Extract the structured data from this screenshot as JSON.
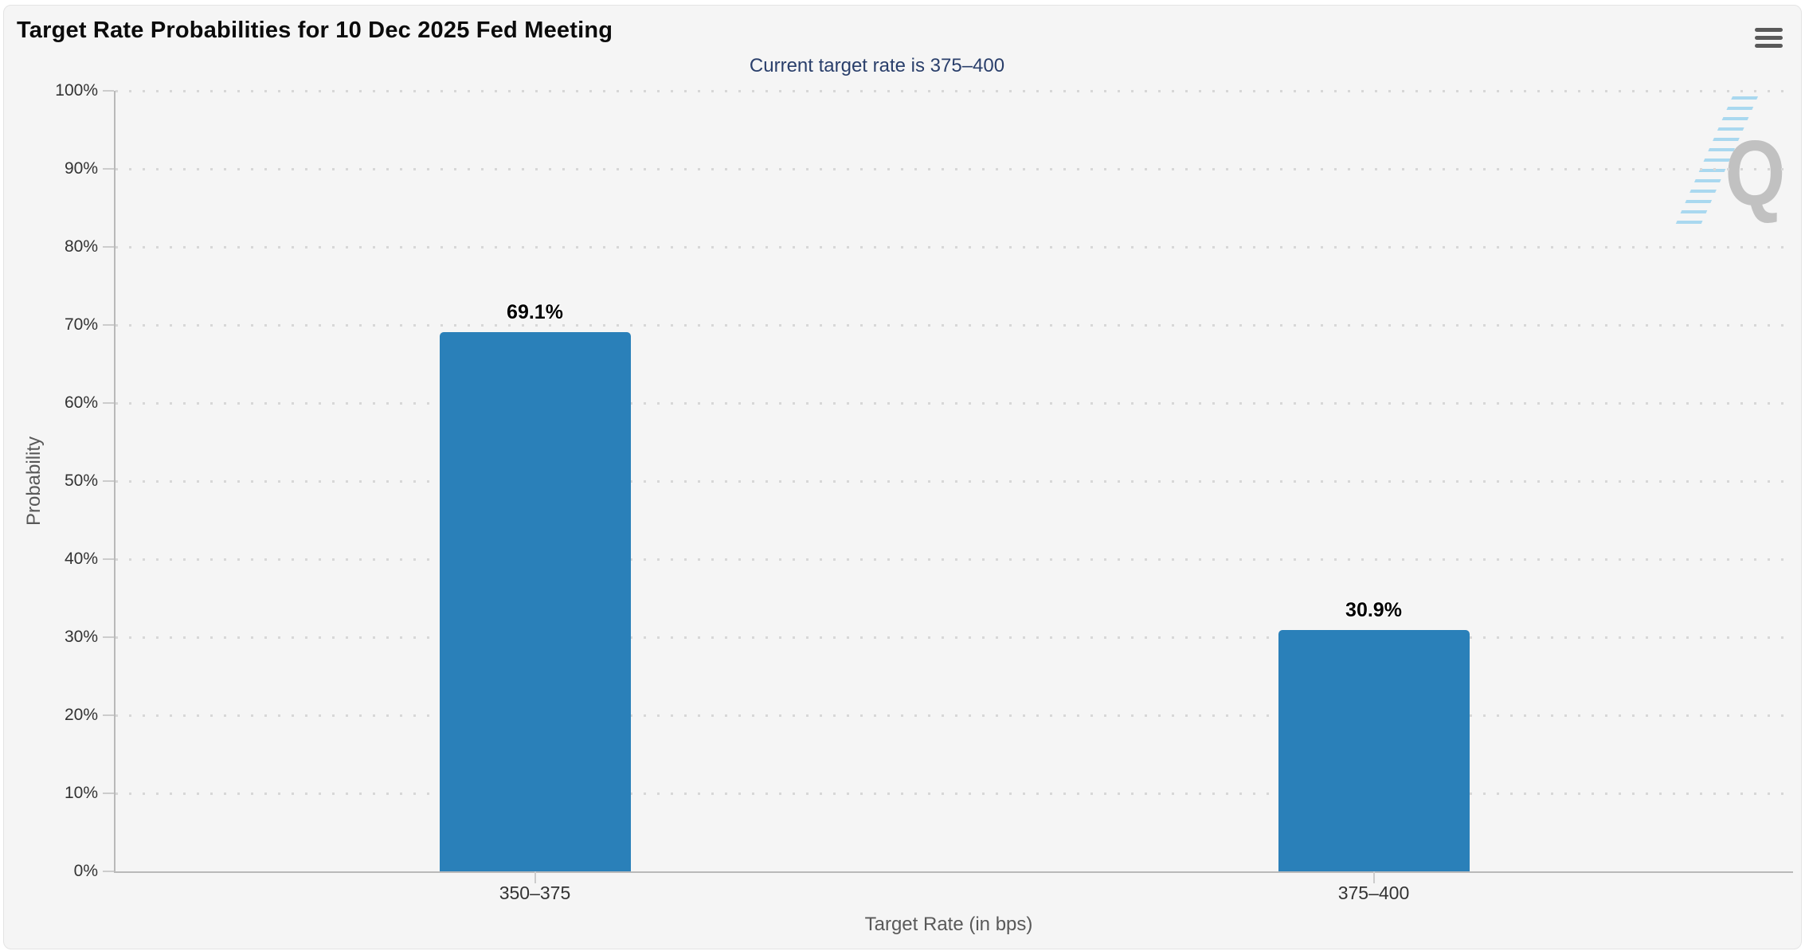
{
  "chart_data": {
    "type": "bar",
    "title": "Target Rate Probabilities for 10 Dec 2025 Fed Meeting",
    "subtitle": "Current target rate is 375–400",
    "categories": [
      "350–375",
      "375–400"
    ],
    "values": [
      69.1,
      30.9
    ],
    "value_labels": [
      "69.1%",
      "30.9%"
    ],
    "xlabel": "Target Rate (in bps)",
    "ylabel": "Probability",
    "ylim": [
      0,
      100
    ],
    "ytick_step": 10,
    "ytick_labels": [
      "0%",
      "10%",
      "20%",
      "30%",
      "40%",
      "50%",
      "60%",
      "70%",
      "80%",
      "90%",
      "100%"
    ],
    "grid": "horizontal-dotted",
    "legend": "none",
    "watermark_letter": "Q"
  },
  "colors": {
    "bar": "#2A80B9",
    "subtitle": "#2A3F6B",
    "chart_background": "#F5F5F5",
    "gridline": "#D7D7D7",
    "axis_line": "#B9B9B9",
    "label_text": "#333333",
    "axis_title_text": "#595959",
    "menu_icon": "#595959",
    "watermark_gray": "#8F8F8F",
    "watermark_blue": "#5FBDEA"
  },
  "icons": {
    "context_menu": "hamburger-icon",
    "watermark": "quikstrike-q-logo"
  }
}
